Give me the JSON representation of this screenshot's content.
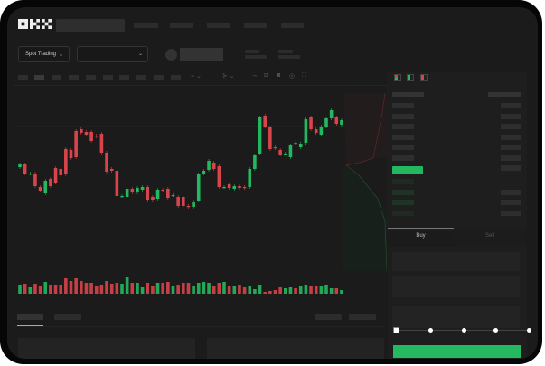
{
  "header": {
    "logo": "OKX"
  },
  "toolbar": {
    "market_selector": "Spot Trading",
    "pair_selector": ""
  },
  "tradebox": {
    "buy_tab": "Buy",
    "sell_tab": "Sell",
    "leverage_fraction": 0
  },
  "colors": {
    "up": "#23b85f",
    "down": "#d9444a",
    "background": "#1b1b1b",
    "accent": "#25b863"
  },
  "icons": [
    "chevron-down-icon",
    "candle-type-icon",
    "indicator-icon",
    "draw-line-icon",
    "ruler-icon",
    "camera-icon",
    "settings-icon",
    "fullscreen-icon",
    "orderbook-both-icon",
    "orderbook-buy-icon",
    "orderbook-sell-icon"
  ],
  "chart_data": {
    "type": "candlestick",
    "candles": [
      [
        115,
        118
      ],
      [
        118,
        108
      ],
      [
        108,
        108
      ],
      [
        108,
        94
      ],
      [
        93,
        89
      ],
      [
        86,
        100
      ],
      [
        102,
        94
      ],
      [
        114,
        98
      ],
      [
        113,
        106
      ],
      [
        135,
        107
      ],
      [
        134,
        125
      ],
      [
        155,
        126
      ],
      [
        157,
        153
      ],
      [
        154,
        151
      ],
      [
        154,
        144
      ],
      [
        150,
        149
      ],
      [
        152,
        131
      ],
      [
        131,
        110
      ],
      [
        113,
        111
      ],
      [
        111,
        83
      ],
      [
        83,
        83
      ],
      [
        82,
        91
      ],
      [
        91,
        87
      ],
      [
        87,
        92
      ],
      [
        90,
        93
      ],
      [
        93,
        79
      ],
      [
        82,
        79
      ],
      [
        80,
        90
      ],
      [
        90,
        89
      ],
      [
        91,
        81
      ],
      [
        84,
        84
      ],
      [
        82,
        72
      ],
      [
        82,
        72
      ],
      [
        72,
        71
      ],
      [
        71,
        77
      ],
      [
        78,
        107
      ],
      [
        108,
        111
      ],
      [
        112,
        122
      ],
      [
        120,
        113
      ],
      [
        116,
        93
      ],
      [
        93,
        93
      ],
      [
        96,
        92
      ],
      [
        91,
        94
      ],
      [
        94,
        92
      ],
      [
        93,
        92
      ],
      [
        93,
        113
      ],
      [
        113,
        128
      ],
      [
        130,
        170
      ],
      [
        172,
        160
      ],
      [
        159,
        135
      ],
      [
        137,
        136
      ],
      [
        134,
        129
      ],
      [
        130,
        130
      ],
      [
        126,
        139
      ],
      [
        142,
        141
      ],
      [
        137,
        141
      ],
      [
        142,
        168
      ],
      [
        170,
        157
      ],
      [
        157,
        153
      ],
      [
        151,
        160
      ],
      [
        160,
        169
      ],
      [
        169,
        178
      ],
      [
        170,
        163
      ],
      [
        162,
        167
      ]
    ],
    "volume": [
      10,
      11,
      7,
      11,
      8,
      13,
      10,
      10,
      10,
      17,
      14,
      17,
      14,
      12,
      12,
      8,
      10,
      14,
      11,
      12,
      11,
      19,
      12,
      12,
      7,
      12,
      8,
      12,
      12,
      13,
      9,
      10,
      12,
      12,
      9,
      12,
      13,
      12,
      9,
      12,
      13,
      9,
      8,
      10,
      7,
      8,
      5,
      10,
      2,
      3,
      4,
      7,
      6,
      7,
      6,
      8,
      10,
      9,
      8,
      8,
      10,
      6,
      6,
      4
    ]
  }
}
